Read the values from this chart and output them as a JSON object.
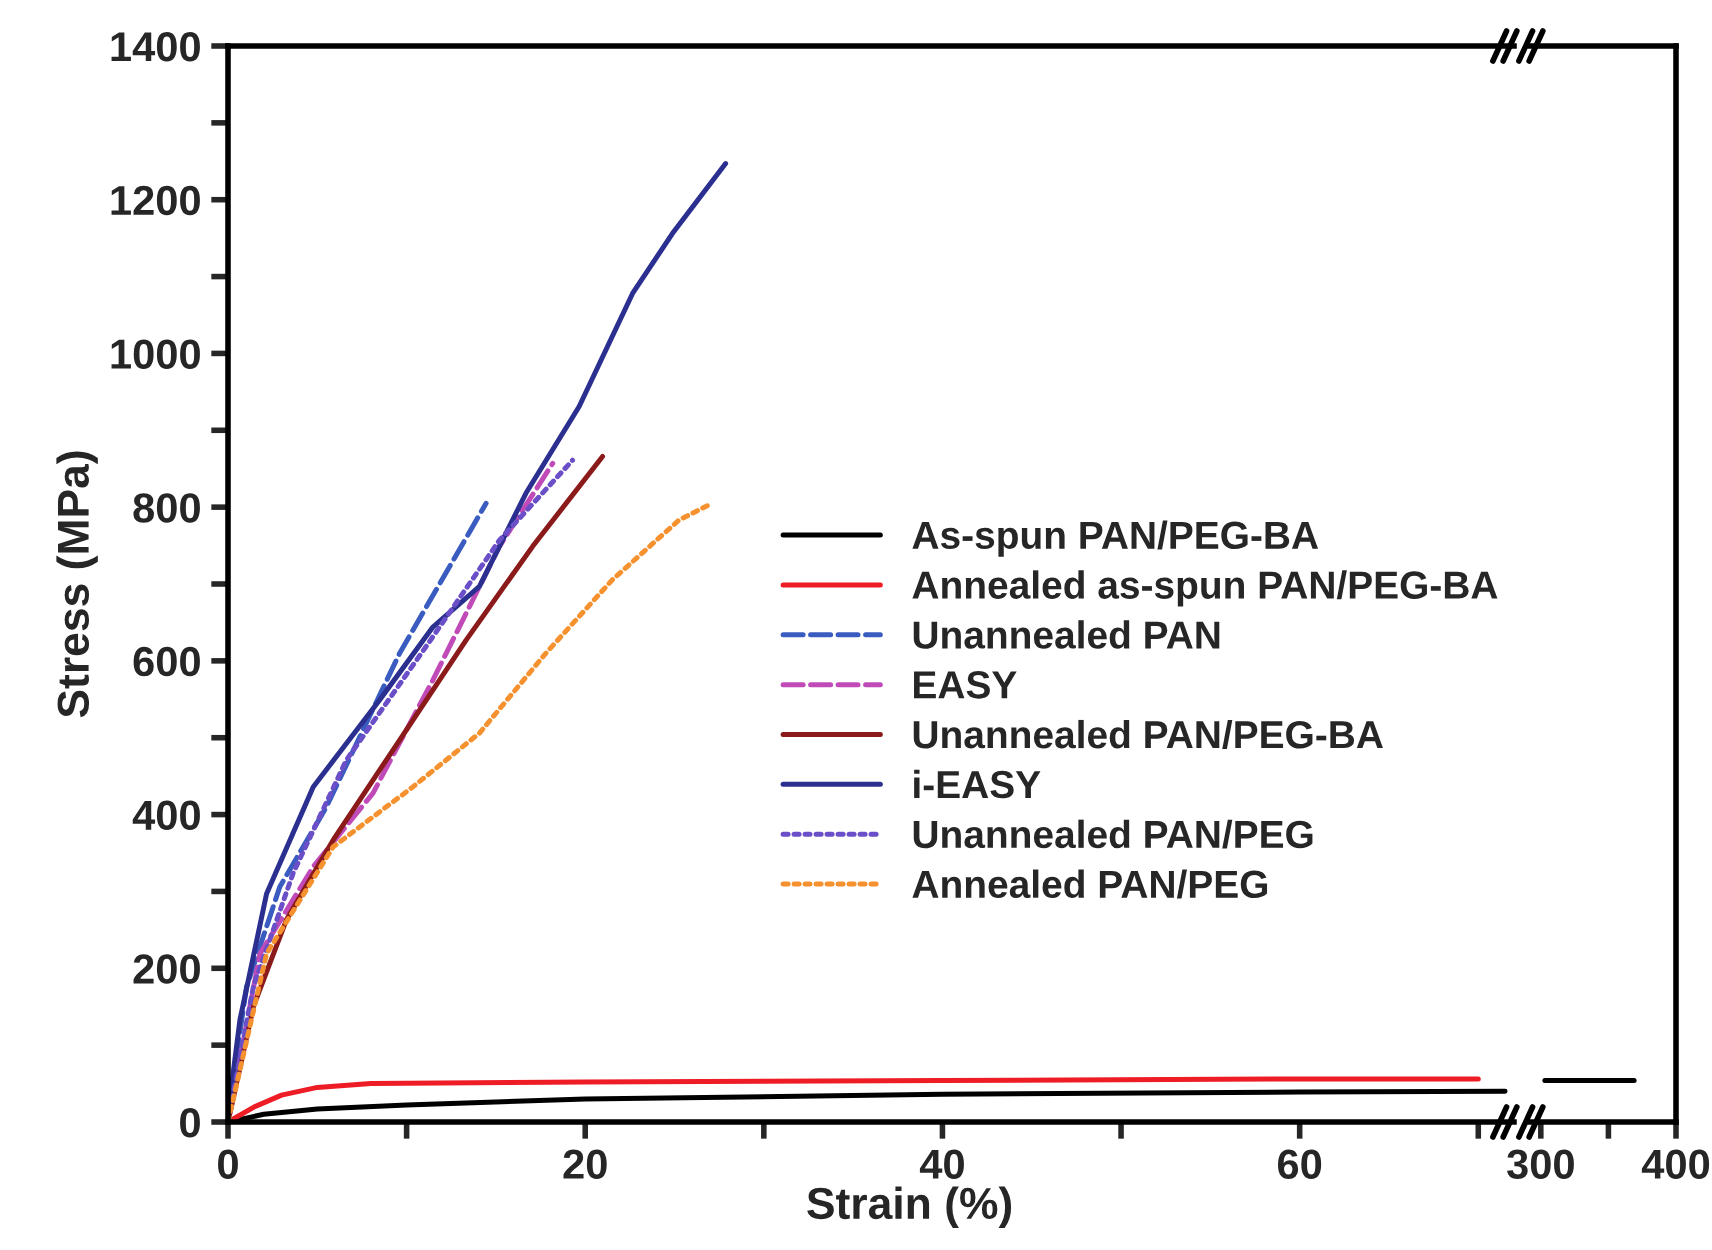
{
  "chart_data": [
    {
      "type": "line",
      "xlabel": "Strain (%)",
      "ylabel": "Stress (MPa)",
      "xlim": [
        0,
        72
      ],
      "ylim": [
        0,
        1400
      ],
      "xticks": [
        0,
        {
          "value": 10,
          "label": null
        },
        20,
        {
          "value": 30,
          "label": null
        },
        40,
        {
          "value": 50,
          "label": null
        },
        60,
        {
          "value": 70,
          "label": null
        }
      ],
      "yticks": [
        0,
        {
          "value": 100,
          "label": null
        },
        200,
        {
          "value": 300,
          "label": null
        },
        400,
        {
          "value": 500,
          "label": null
        },
        600,
        {
          "value": 700,
          "label": null
        },
        800,
        {
          "value": 900,
          "label": null
        },
        1000,
        {
          "value": 1100,
          "label": null
        },
        1200,
        {
          "value": 1300,
          "label": null
        },
        1400
      ],
      "legend": "center right",
      "grid": false,
      "marker": "none",
      "series": [
        {
          "name": "As-spun PAN/PEG-BA",
          "color": "#000000",
          "line_style": "solid",
          "x": [
            0,
            2,
            5,
            10,
            20,
            40,
            60,
            71.5
          ],
          "values": [
            0,
            10,
            17,
            22,
            30,
            36,
            39,
            40
          ]
        },
        {
          "name": "Annealed as-spun PAN/PEG-BA",
          "color": "#ee1c25",
          "line_style": "solid",
          "x": [
            0,
            1.5,
            3,
            5,
            8,
            20,
            40,
            60,
            70
          ],
          "values": [
            0,
            20,
            35,
            45,
            50,
            52,
            54,
            56,
            56
          ]
        },
        {
          "name": "Unannealed PAN",
          "color": "#3a5bbf",
          "line_style": "dashed",
          "x": [
            0,
            1.04,
            2.9,
            5.51,
            9.61,
            14.45
          ],
          "values": [
            11,
            176,
            306,
            410,
            610,
            805
          ]
        },
        {
          "name": "EASY",
          "color": "#c04bb8",
          "line_style": "dashed",
          "x": [
            0,
            1.79,
            4.77,
            8.12,
            11.47,
            15.2,
            18.18
          ],
          "values": [
            0,
            219,
            332,
            428,
            575,
            749,
            857
          ]
        },
        {
          "name": "Unannealed PAN/PEG-BA",
          "color": "#8b1a1a",
          "line_style": "solid",
          "x": [
            0,
            1.42,
            3.27,
            5.89,
            9.61,
            13.33,
            17.06,
            20.97
          ],
          "values": [
            0,
            150,
            263,
            367,
            497,
            627,
            749,
            866
          ]
        },
        {
          "name": "i-EASY",
          "color": "#2b2f8f",
          "line_style": "solid",
          "x": [
            0,
            0.67,
            2.16,
            4.77,
            8.49,
            11.47,
            14.08,
            16.68,
            19.66,
            22.65,
            24.88,
            27.86
          ],
          "values": [
            11,
            133,
            297,
            436,
            549,
            644,
            697,
            818,
            931,
            1078,
            1156,
            1247
          ]
        },
        {
          "name": "Unannealed PAN/PEG",
          "color": "#6a4fc8",
          "line_style": "dotted",
          "x": [
            0,
            1.42,
            3.65,
            6.63,
            11.1,
            15.2,
            19.29
          ],
          "values": [
            0,
            176,
            324,
            471,
            619,
            757,
            861
          ]
        },
        {
          "name": "Annealed PAN/PEG",
          "color": "#f5922f",
          "line_style": "dotted",
          "x": [
            0,
            2.16,
            5.89,
            10.35,
            14.08,
            17.8,
            21.5,
            25.24,
            27.1
          ],
          "values": [
            0,
            219,
            358,
            436,
            506,
            610,
            705,
            783,
            805
          ]
        }
      ]
    },
    {
      "type": "line",
      "xlim": [
        292,
        400
      ],
      "ylim": [
        0,
        1400
      ],
      "xticks": [
        300,
        {
          "value": 350,
          "label": null
        },
        400
      ],
      "tick_labels": "x",
      "grid": false,
      "marker": "none",
      "series": [
        {
          "color": "#000000",
          "line_style": "solid",
          "x": [
            303,
            369
          ],
          "values": [
            54,
            54
          ]
        }
      ]
    }
  ]
}
